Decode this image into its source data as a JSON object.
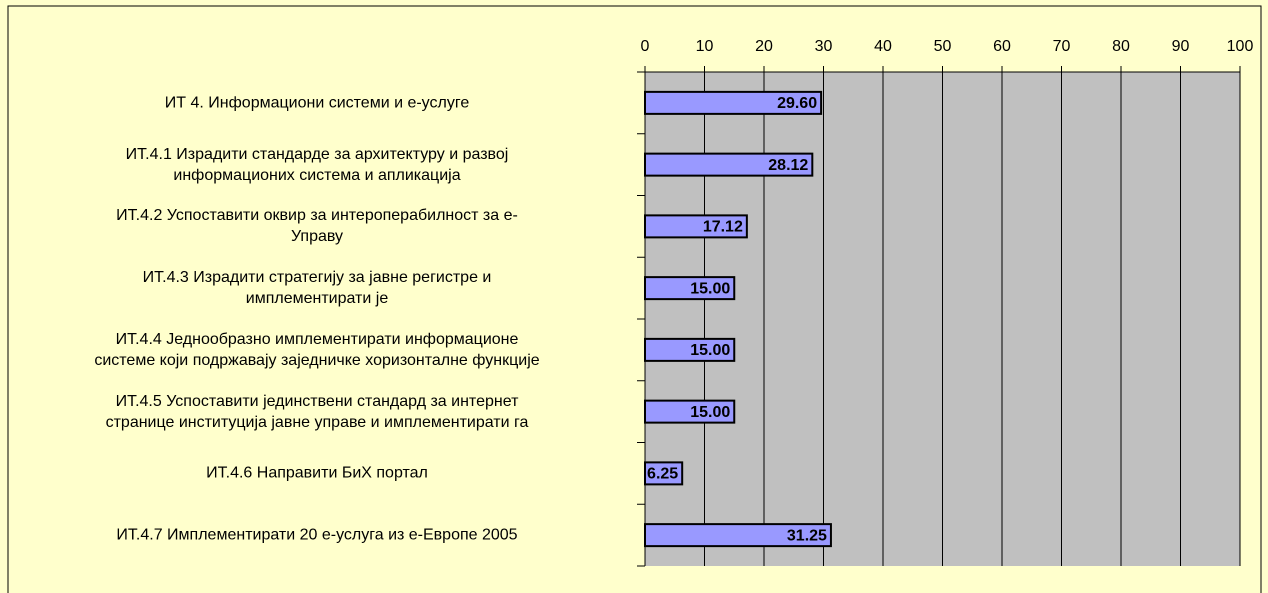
{
  "chart_data": {
    "type": "barh",
    "categories": [
      "ИТ 4. Информациони системи и е-услуге",
      "ИТ.4.1 Израдити стандарде за архитектуру и развој\nинформационих система и апликација",
      "ИТ.4.2 Успоставити оквир за интероперабилност за е-\nУправу",
      "ИТ.4.3 Израдити стратегију за јавне регистре и\nимплементирати је",
      "ИТ.4.4 Једнообразно имплементирати информационе\nсистеме који подржавају заједничке хоризонталне функције",
      "ИТ.4.5 Успоставити јединствени стандард за интернет\nстранице институција јавне управе и имплементирати га",
      "ИТ.4.6 Направити БиХ портал",
      "ИТ.4.7 Имплементирати 20 е-услуга из е-Европе 2005"
    ],
    "values": [
      29.6,
      28.12,
      17.12,
      15,
      15,
      15,
      6.25,
      31.25
    ],
    "value_labels": [
      "29.60",
      "28.12",
      "17.12",
      "15.00",
      "15.00",
      "15.00",
      "6.25",
      "31.25"
    ],
    "color": "#9999ff",
    "xlim": [
      0,
      100
    ],
    "xticks": [
      0,
      10,
      20,
      30,
      40,
      50,
      60,
      70,
      80,
      90,
      100
    ],
    "grid": true
  }
}
